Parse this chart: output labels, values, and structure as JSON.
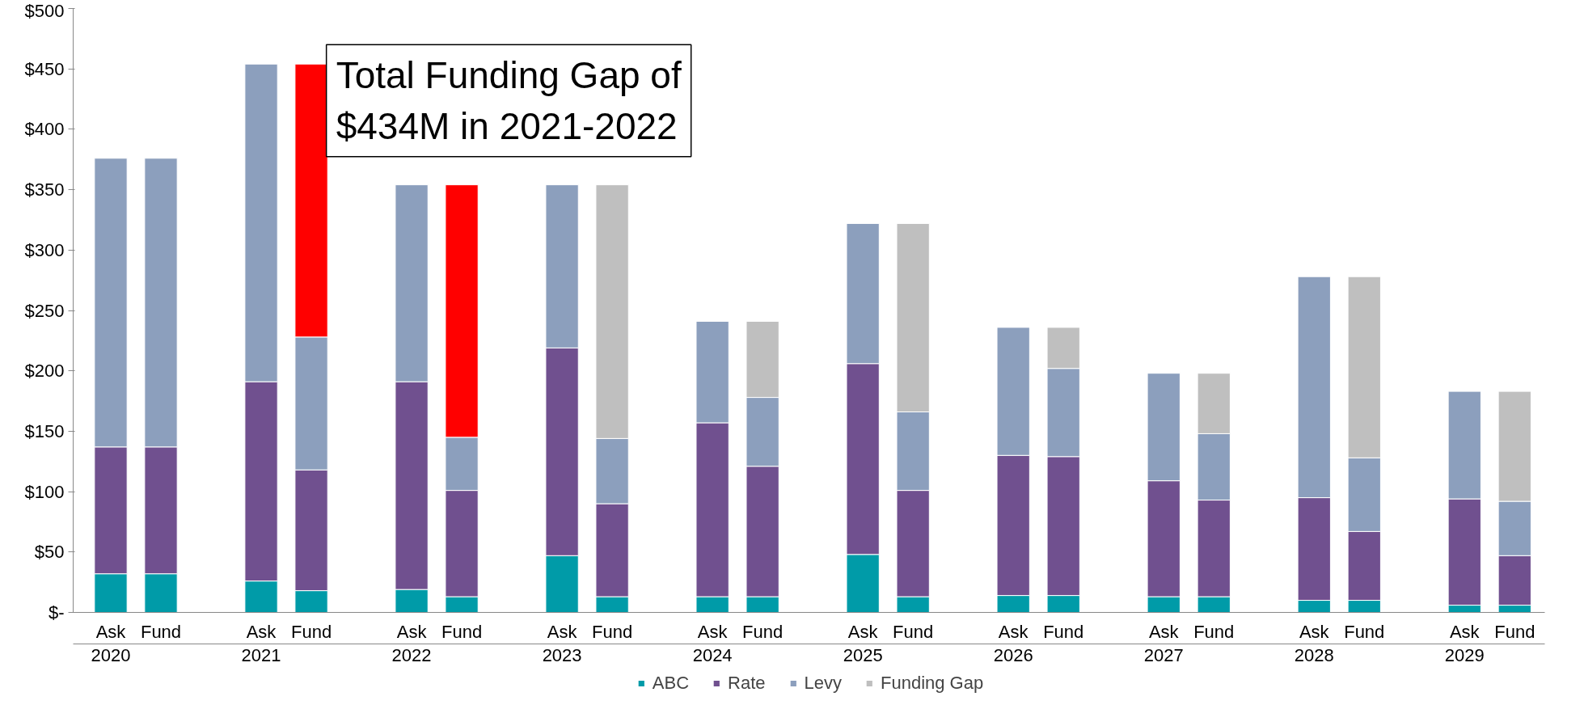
{
  "chart_data": {
    "type": "bar",
    "stacked": true,
    "categories": [
      "Ask\n2020",
      "Fund",
      "Ask\n2021",
      "Fund",
      "Ask\n2022",
      "Fund",
      "Ask\n2023",
      "Fund",
      "Ask\n2024",
      "Fund",
      "Ask\n2025",
      "Fund",
      "Ask\n2026",
      "Fund",
      "Ask\n2027",
      "Fund",
      "Ask\n2028",
      "Fund",
      "Ask\n2029",
      "Fund"
    ],
    "series": [
      {
        "name": "ABC",
        "color": "#009ba8",
        "values": [
          32,
          32,
          26,
          18,
          19,
          13,
          47,
          13,
          13,
          13,
          48,
          13,
          14,
          14,
          13,
          13,
          10,
          10,
          6,
          6
        ]
      },
      {
        "name": "Rate",
        "color": "#70508f",
        "values": [
          105,
          105,
          165,
          100,
          172,
          88,
          172,
          77,
          144,
          108,
          158,
          88,
          116,
          115,
          96,
          80,
          85,
          57,
          88,
          41
        ]
      },
      {
        "name": "Levy",
        "color": "#8c9fbd",
        "values": [
          239,
          239,
          263,
          110,
          163,
          44,
          135,
          54,
          84,
          57,
          116,
          65,
          106,
          73,
          89,
          55,
          183,
          61,
          89,
          45
        ]
      },
      {
        "name": "Funding Gap",
        "color": "#bfbfbf",
        "colors": [
          null,
          "#bfbfbf",
          null,
          "#ff0000",
          null,
          "#ff0000",
          null,
          "#bfbfbf",
          null,
          "#bfbfbf",
          null,
          "#bfbfbf",
          null,
          "#bfbfbf",
          null,
          "#bfbfbf",
          null,
          "#bfbfbf",
          null,
          "#bfbfbf"
        ],
        "values": [
          null,
          null,
          null,
          226,
          null,
          209,
          null,
          210,
          null,
          63,
          null,
          156,
          null,
          34,
          null,
          50,
          null,
          150,
          null,
          91
        ]
      }
    ],
    "ylim": [
      0,
      500
    ],
    "yticks": [
      {
        "value": 0,
        "label": "$-"
      },
      {
        "value": 50,
        "label": "$50"
      },
      {
        "value": 100,
        "label": "$100"
      },
      {
        "value": 150,
        "label": "$150"
      },
      {
        "value": 200,
        "label": "$200"
      },
      {
        "value": 250,
        "label": "$250"
      },
      {
        "value": 300,
        "label": "$300"
      },
      {
        "value": 350,
        "label": "$350"
      },
      {
        "value": 400,
        "label": "$400"
      },
      {
        "value": 450,
        "label": "$450"
      },
      {
        "value": 500,
        "label": "$500"
      }
    ],
    "annotations": [
      "Total Funding Gap of\n$434M in 2021-2022"
    ],
    "grid": false,
    "legend": "bottom"
  }
}
